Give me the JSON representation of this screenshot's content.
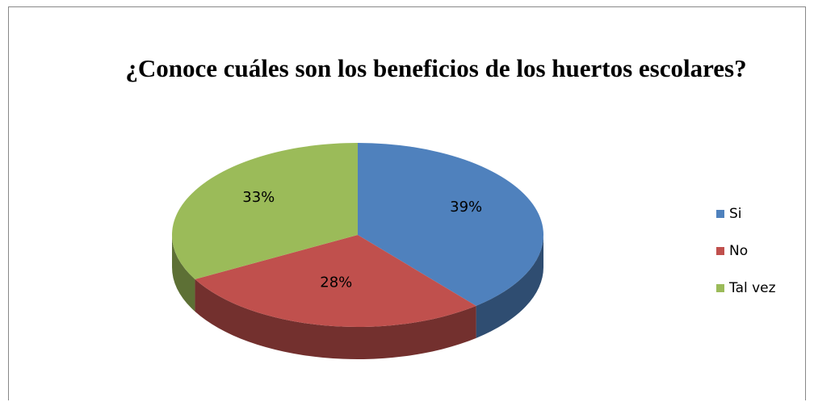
{
  "chart_data": {
    "type": "pie3d",
    "title": "¿Conoce cuáles son los beneficios de los huertos escolares?",
    "categories": [
      "Si",
      "No",
      "Tal vez"
    ],
    "values": [
      39,
      28,
      33
    ],
    "value_labels": [
      "39%",
      "28%",
      "33%"
    ],
    "colors": [
      "#4f81bd",
      "#c0504d",
      "#9bbb59"
    ],
    "legend": "right"
  }
}
